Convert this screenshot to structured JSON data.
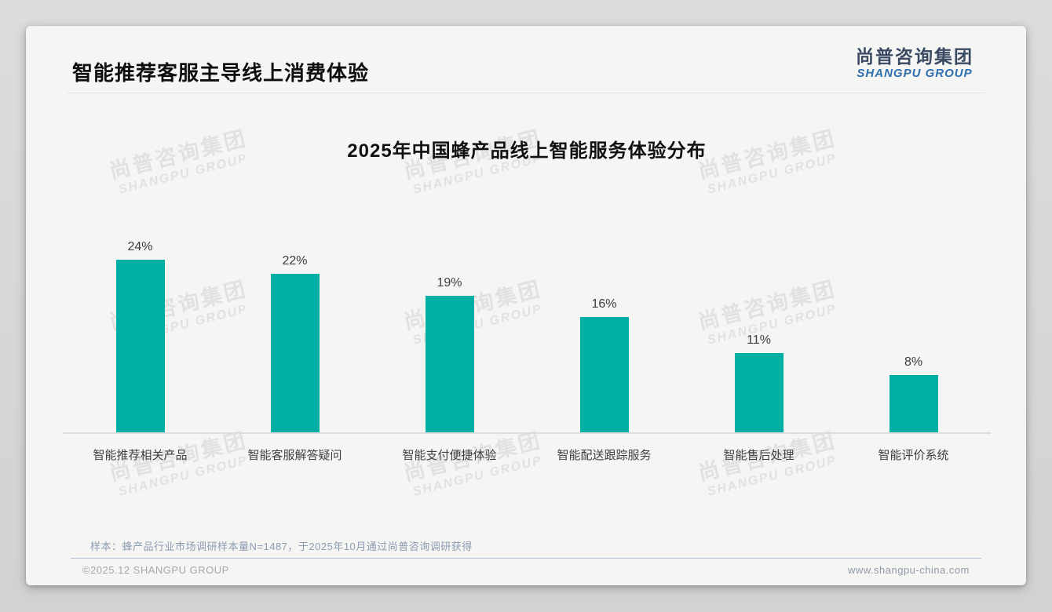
{
  "page": {
    "header": {
      "title": "智能推荐客服主导线上消费体验"
    },
    "logo": {
      "cn": "尚普咨询集团",
      "en": "SHANGPU GROUP"
    },
    "watermark": {
      "line1": "尚普咨询集团",
      "line2": "SHANGPU GROUP"
    },
    "note": "样本：蜂产品行业市场调研样本量N=1487，于2025年10月通过尚普咨询调研获得",
    "footer": {
      "left": "©2025.12 SHANGPU GROUP",
      "right": "www.shangpu-china.com"
    }
  },
  "chart_data": {
    "type": "bar",
    "title": "2025年中国蜂产品线上智能服务体验分布",
    "categories": [
      "智能推荐相关产品",
      "智能客服解答疑问",
      "智能支付便捷体验",
      "智能配送跟踪服务",
      "智能售后处理",
      "智能评价系统"
    ],
    "values": [
      24,
      22,
      19,
      16,
      11,
      8
    ],
    "unit": "%",
    "data_labels": true,
    "grid": false,
    "legend": "none",
    "ylim": [
      0,
      26
    ],
    "bar_color": "#00AFA4"
  },
  "colors": {
    "accent_teal": "#00AFA4",
    "logo_navy": "#3A4A63",
    "logo_blue": "#2E6FAD",
    "note_bluegray": "#8B9BAF",
    "divider_blue": "#B9C7D9",
    "footer_gray": "#A6A6A6",
    "card_bg": "#F5F5F4",
    "page_bg": "#D7D7D7"
  }
}
